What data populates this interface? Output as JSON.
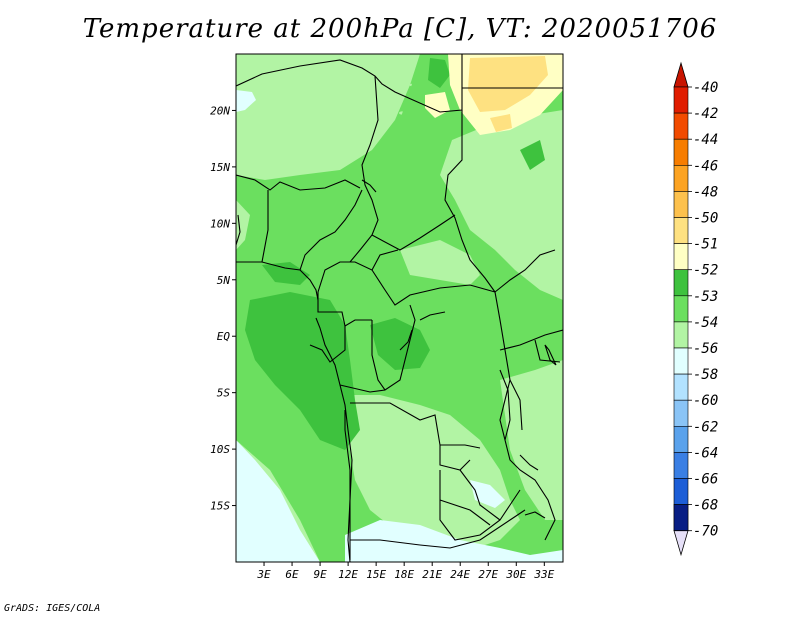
{
  "title": "Temperature at 200hPa [C], VT: 2020051706",
  "credit": "GrADS: IGES/COLA",
  "map": {
    "lon_labels": [
      "3E",
      "6E",
      "9E",
      "12E",
      "15E",
      "18E",
      "21E",
      "24E",
      "27E",
      "30E",
      "33E"
    ],
    "lat_labels": [
      "20N",
      "15N",
      "10N",
      "5N",
      "EQ",
      "5S",
      "10S",
      "15S"
    ],
    "lon_range": [
      0,
      35
    ],
    "lat_range": [
      -20,
      25
    ]
  },
  "colorbar": {
    "levels": [
      "-40",
      "-42",
      "-44",
      "-46",
      "-48",
      "-50",
      "-51",
      "-52",
      "-53",
      "-54",
      "-56",
      "-58",
      "-60",
      "-62",
      "-64",
      "-66",
      "-68",
      "-70"
    ],
    "colors": [
      "#e01d00",
      "#f24b00",
      "#f77d00",
      "#fca322",
      "#fdc14d",
      "#fee181",
      "#ffffc4",
      "#3ec23e",
      "#6bdf5f",
      "#b2f4a4",
      "#e1ffff",
      "#b2e2ff",
      "#8ac4f6",
      "#5aa2ec",
      "#3a7fe4",
      "#1d5ed7",
      "#103cc1",
      "#081e84"
    ],
    "top_cap_color": "#c81400",
    "bottom_cap_color": "#e6e0f8"
  },
  "field_colors": {
    "c_le_neg54": "#e1ffff",
    "c_neg54_neg53": "#b2f4a4",
    "c_neg53_neg52": "#6bdf5f",
    "c_neg52_neg51": "#3ec23e",
    "c_neg51_neg50": "#ffffc4",
    "c_neg50_neg48": "#fee181"
  }
}
